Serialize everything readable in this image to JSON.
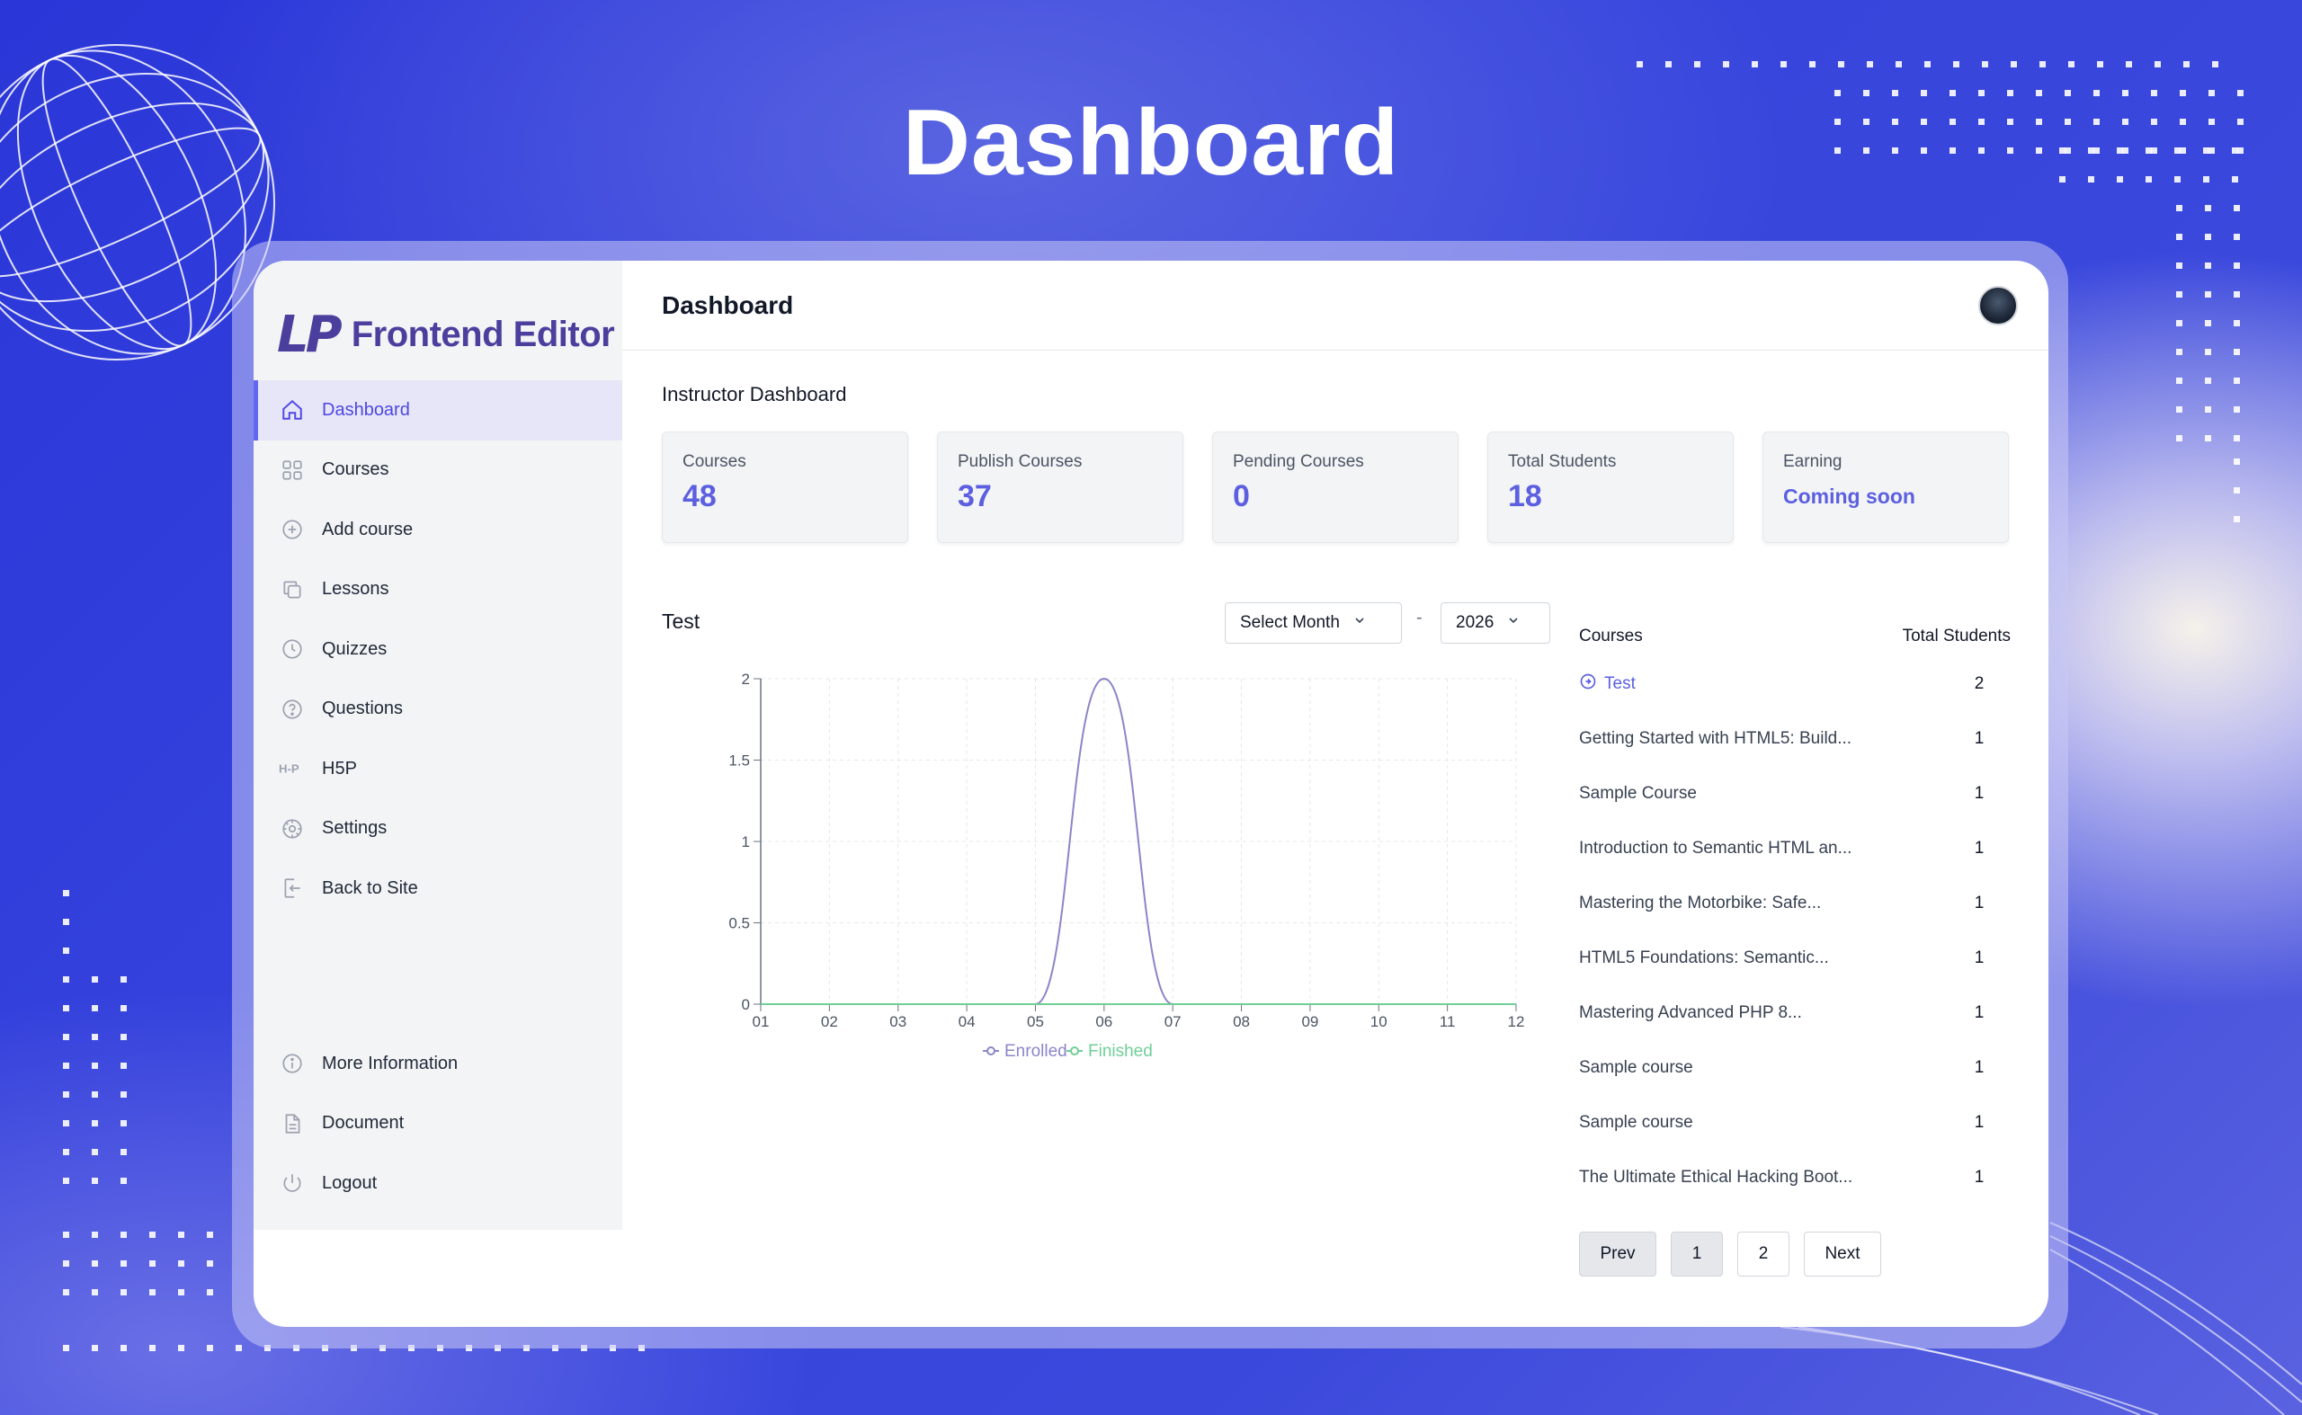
{
  "page_title": "Dashboard",
  "logo": {
    "mark": "LP",
    "text": "Frontend Editor"
  },
  "sidebar": {
    "items": [
      {
        "label": "Dashboard",
        "icon": "home-icon",
        "active": true
      },
      {
        "label": "Courses",
        "icon": "grid-icon"
      },
      {
        "label": "Add course",
        "icon": "plus-circle-icon"
      },
      {
        "label": "Lessons",
        "icon": "copy-icon"
      },
      {
        "label": "Quizzes",
        "icon": "clock-icon"
      },
      {
        "label": "Questions",
        "icon": "question-circle-icon"
      },
      {
        "label": "H5P",
        "icon": "h5p-icon"
      },
      {
        "label": "Settings",
        "icon": "settings-icon"
      },
      {
        "label": "Back to Site",
        "icon": "exit-icon"
      }
    ],
    "bottom_items": [
      {
        "label": "More Information",
        "icon": "info-icon"
      },
      {
        "label": "Document",
        "icon": "document-icon"
      },
      {
        "label": "Logout",
        "icon": "power-icon"
      }
    ]
  },
  "header": {
    "title": "Dashboard"
  },
  "main": {
    "subtitle": "Instructor Dashboard",
    "cards": [
      {
        "label": "Courses",
        "value": "48"
      },
      {
        "label": "Publish Courses",
        "value": "37"
      },
      {
        "label": "Pending Courses",
        "value": "0"
      },
      {
        "label": "Total Students",
        "value": "18"
      },
      {
        "label": "Earning",
        "value": "Coming soon"
      }
    ],
    "chart_title": "Test",
    "month_select": "Select Month",
    "separator": "-",
    "year_select": "2026"
  },
  "chart_data": {
    "type": "line",
    "x": [
      "01",
      "02",
      "03",
      "04",
      "05",
      "06",
      "07",
      "08",
      "09",
      "10",
      "11",
      "12"
    ],
    "series": [
      {
        "name": "Enrolled",
        "values": [
          0,
          0,
          0,
          0,
          0,
          2,
          0,
          0,
          0,
          0,
          0,
          0
        ],
        "color": "#8b85c9"
      },
      {
        "name": "Finished",
        "values": [
          0,
          0,
          0,
          0,
          0,
          0,
          0,
          0,
          0,
          0,
          0,
          0
        ],
        "color": "#6fcf97"
      }
    ],
    "yticks": [
      "0",
      "0.5",
      "1",
      "1.5",
      "2"
    ],
    "ylim": [
      0,
      2
    ],
    "grid": true,
    "legend": "bottom",
    "xlabel": "",
    "ylabel": ""
  },
  "table": {
    "col_courses": "Courses",
    "col_students": "Total Students",
    "rows": [
      {
        "name": "Test",
        "students": "2",
        "link": true
      },
      {
        "name": "Getting Started with HTML5: Build...",
        "students": "1"
      },
      {
        "name": "Sample Course",
        "students": "1"
      },
      {
        "name": "Introduction to Semantic HTML an...",
        "students": "1"
      },
      {
        "name": "Mastering the Motorbike: Safe...",
        "students": "1"
      },
      {
        "name": "HTML5 Foundations: Semantic...",
        "students": "1"
      },
      {
        "name": "Mastering Advanced PHP 8...",
        "students": "1"
      },
      {
        "name": "Sample course",
        "students": "1"
      },
      {
        "name": "Sample course",
        "students": "1"
      },
      {
        "name": "The Ultimate Ethical Hacking Boot...",
        "students": "1"
      }
    ]
  },
  "pagination": {
    "prev": "Prev",
    "pages": [
      "1",
      "2"
    ],
    "next": "Next"
  }
}
